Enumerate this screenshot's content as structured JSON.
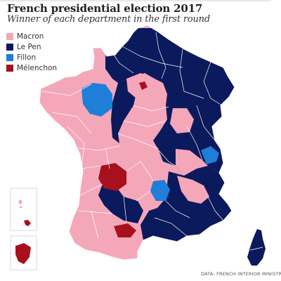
{
  "header": {
    "title": "French presidential election 2017",
    "subtitle": "Winner of each department in the first round"
  },
  "legend": {
    "items": [
      {
        "label": "Macron",
        "color": "#f4a7b9"
      },
      {
        "label": "Le Pen",
        "color": "#0b1a5c"
      },
      {
        "label": "Fillon",
        "color": "#1f7ed8"
      },
      {
        "label": "Mélenchon",
        "color": "#a8101c"
      }
    ]
  },
  "source": {
    "text": "DATA: FRENCH INTERIOR MINISTRY"
  },
  "colors": {
    "macron": "#f4a7b9",
    "lepen": "#0b1a5c",
    "fillon": "#1f7ed8",
    "melenchon": "#a8101c",
    "border": "#ffffff",
    "inset_frame": "#d8d8d8"
  }
}
